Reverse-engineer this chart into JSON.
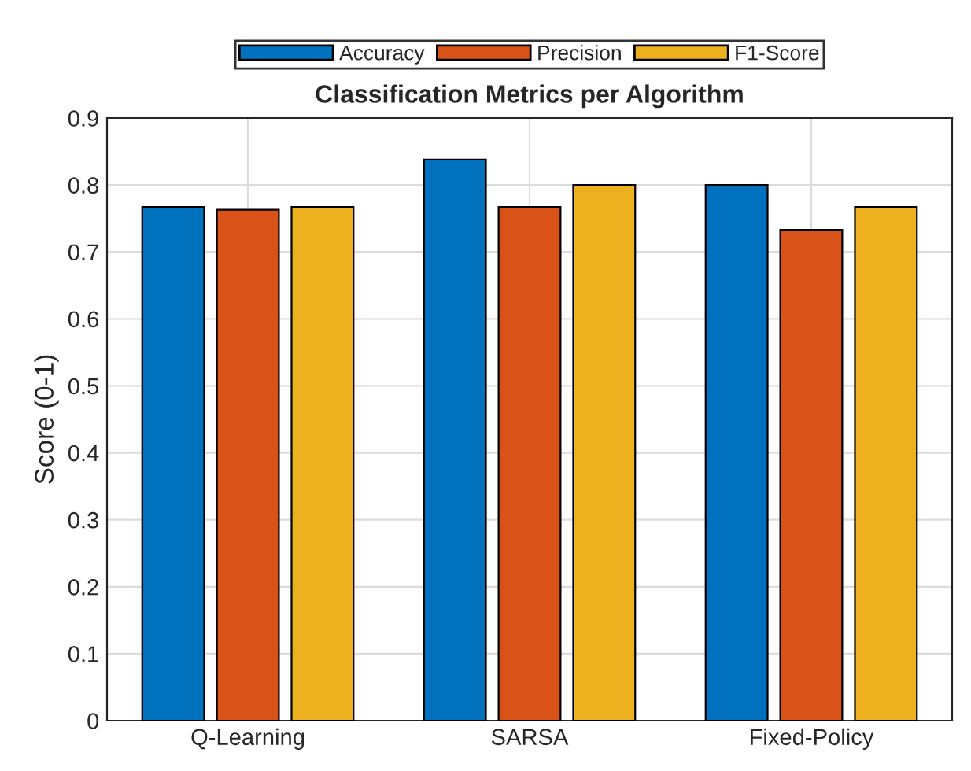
{
  "chart_data": {
    "type": "bar",
    "title": "Classification Metrics per Algorithm",
    "ylabel": "Score (0-1)",
    "categories": [
      "Q-Learning",
      "SARSA",
      "Fixed-Policy"
    ],
    "series": [
      {
        "name": "Accuracy",
        "color": "#0072bd",
        "values": [
          0.767,
          0.838,
          0.8
        ]
      },
      {
        "name": "Precision",
        "color": "#d95319",
        "values": [
          0.763,
          0.767,
          0.733
        ]
      },
      {
        "name": "F1-Score",
        "color": "#edb120",
        "values": [
          0.767,
          0.8,
          0.767
        ]
      }
    ],
    "ylim": [
      0,
      0.9
    ],
    "yticks": [
      0,
      0.1,
      0.2,
      0.3,
      0.4,
      0.5,
      0.6,
      0.7,
      0.8,
      0.9
    ],
    "grid": true,
    "legend": "top"
  }
}
